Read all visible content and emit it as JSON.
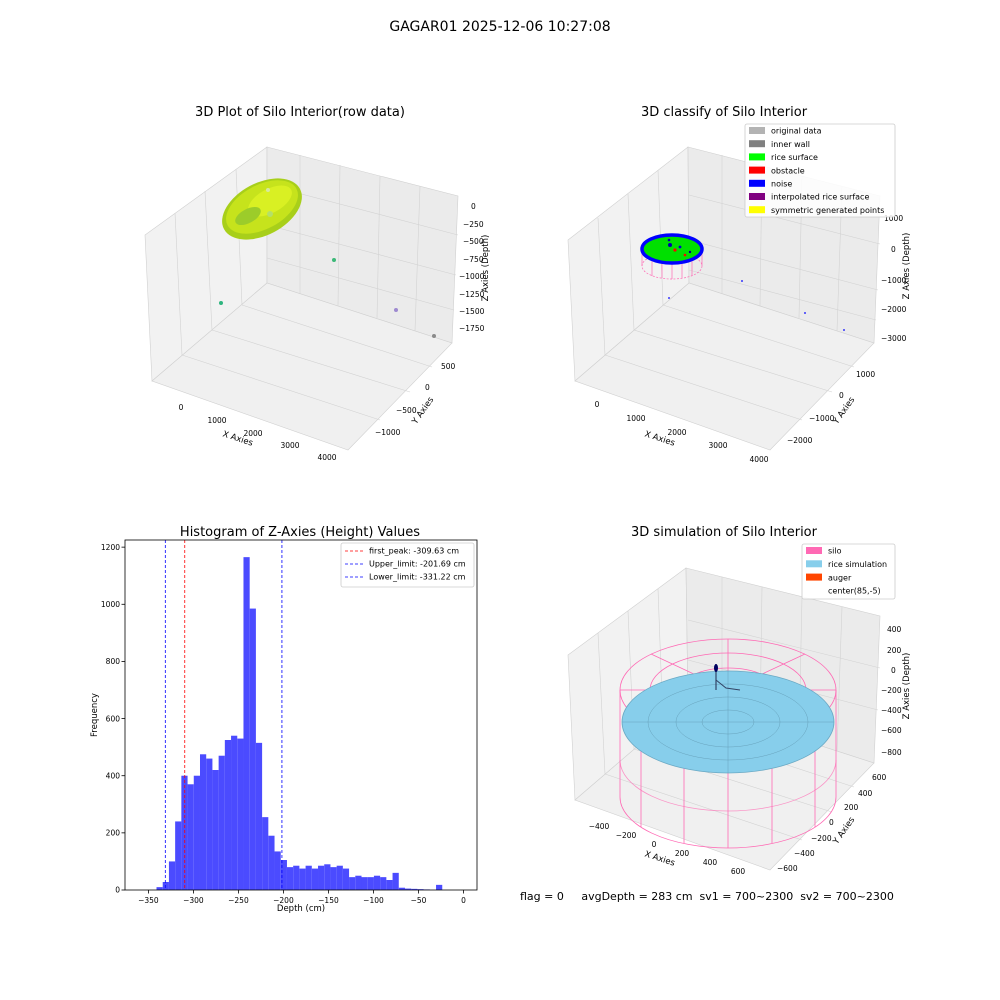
{
  "figure": {
    "suptitle": "GAGAR01 2025-12-06 10:27:08",
    "status_line": "flag = 0     avgDepth = 283 cm  sv1 = 700~2300  sv2 = 700~2300"
  },
  "colors": {
    "histogram_bar": "#4b4bff",
    "first_peak_line": "#ff0000",
    "limit_lines": "#0000ff",
    "rice_raw": "#c6e31c",
    "silo_wire": "#ff69b4",
    "rice_sim": "#87ceeb",
    "pane": "#f2f2f2"
  },
  "chart_data": [
    {
      "type": "scatter",
      "title": "3D Plot of Silo Interior(row data)",
      "xlabel": "X Axies",
      "ylabel": "Y Axies",
      "zlabel": "Z Axies (Depth)",
      "x_ticks": [
        "0",
        "1000",
        "2000",
        "3000",
        "4000"
      ],
      "y_ticks": [
        "500",
        "0",
        "−500",
        "−1000"
      ],
      "z_ticks": [
        "0",
        "−250",
        "−500",
        "−750",
        "−1000",
        "−1250",
        "−1500",
        "−1750"
      ],
      "outlier_points": [
        {
          "x": 1500,
          "y": 300,
          "z": -900,
          "color": "#3cb878"
        },
        {
          "x": 400,
          "y": -500,
          "z": -1300,
          "color": "#2fb57f"
        },
        {
          "x": 3800,
          "y": 100,
          "z": -1600,
          "color": "#9e8ad0"
        },
        {
          "x": 4100,
          "y": 200,
          "z": -1800,
          "color": "#8a8a8a"
        }
      ]
    },
    {
      "type": "scatter",
      "title": "3D classify of Silo Interior",
      "xlabel": "X Axies",
      "ylabel": "Y Axies",
      "zlabel": "Z Axies (Depth)",
      "x_ticks": [
        "0",
        "1000",
        "2000",
        "3000",
        "4000"
      ],
      "y_ticks": [
        "1000",
        "0",
        "−1000",
        "−2000"
      ],
      "z_ticks": [
        "1000",
        "0",
        "−1000",
        "−2000",
        "−3000"
      ],
      "legend_position": "upper right",
      "legend": [
        {
          "label": "original data",
          "color": "#b3b3b3"
        },
        {
          "label": "inner wall",
          "color": "#808080"
        },
        {
          "label": "rice surface",
          "color": "#00ff00"
        },
        {
          "label": "obstacle",
          "color": "#ff0000"
        },
        {
          "label": "noise",
          "color": "#0000ff"
        },
        {
          "label": "interpolated rice surface",
          "color": "#800080"
        },
        {
          "label": "symmetric generated points",
          "color": "#ffff00"
        }
      ]
    },
    {
      "type": "bar",
      "title": "Histogram of Z-Axies (Height) Values",
      "xlabel": "Depth (cm)",
      "ylabel": "Frequency",
      "xlim": [
        -376,
        15
      ],
      "ylim": [
        0,
        1225
      ],
      "x_ticks": [
        -350,
        -300,
        -250,
        -200,
        -150,
        -100,
        -50,
        0
      ],
      "y_ticks": [
        0,
        200,
        400,
        600,
        800,
        1000,
        1200
      ],
      "x_tick_labels": [
        "−350",
        "−300",
        "−250",
        "−200",
        "−150",
        "−100",
        "−50",
        "0"
      ],
      "y_tick_labels": [
        "0",
        "200",
        "400",
        "600",
        "800",
        "1000",
        "1200"
      ],
      "bin_start": -341.0,
      "bin_width": 6.9,
      "values": [
        10,
        28,
        100,
        240,
        400,
        370,
        400,
        475,
        460,
        420,
        470,
        525,
        540,
        530,
        1165,
        985,
        515,
        255,
        190,
        135,
        105,
        80,
        85,
        75,
        85,
        75,
        85,
        90,
        80,
        85,
        75,
        45,
        50,
        45,
        45,
        50,
        45,
        35,
        60,
        8,
        5,
        4,
        3,
        2,
        0,
        18
      ],
      "vlines": [
        {
          "x": -309.63,
          "label": "first_peak: -309.63 cm",
          "color": "#ff0000"
        },
        {
          "x": -201.69,
          "label": "Upper_limit: -201.69 cm",
          "color": "#0000ff"
        },
        {
          "x": -331.22,
          "label": "Lower_limit: -331.22 cm",
          "color": "#0000ff"
        }
      ],
      "grid": false,
      "legend_position": "upper right"
    },
    {
      "type": "area",
      "title": "3D simulation of Silo Interior",
      "xlabel": "X Axies",
      "ylabel": "Y Axies",
      "zlabel": "Z Axies (Depth)",
      "x_ticks": [
        "−400",
        "−200",
        "0",
        "200",
        "400",
        "600"
      ],
      "y_ticks": [
        "600",
        "400",
        "200",
        "0",
        "−200",
        "−400",
        "−600"
      ],
      "z_ticks": [
        "400",
        "200",
        "0",
        "−200",
        "−400",
        "−600",
        "−800"
      ],
      "legend_position": "upper right",
      "legend": [
        {
          "label": "silo",
          "color": "#ff69b4"
        },
        {
          "label": "rice simulation",
          "color": "#87ceeb"
        },
        {
          "label": "auger",
          "color": "#ff4500"
        },
        {
          "label": "center(85,-5)",
          "color": "#ffffff"
        }
      ]
    }
  ]
}
